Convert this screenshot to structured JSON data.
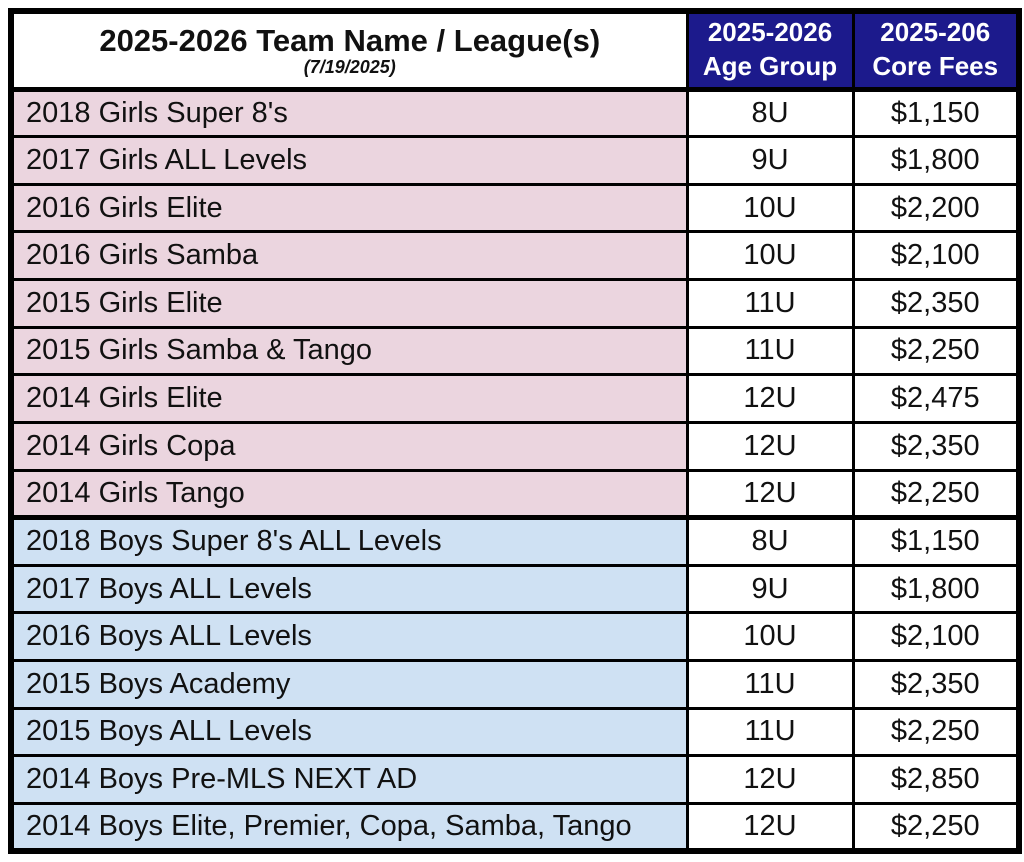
{
  "table": {
    "header": {
      "title": "2025-2026 Team Name / League(s)",
      "date": "(7/19/2025)",
      "age_group": {
        "line1": "2025-2026",
        "line2": "Age Group"
      },
      "core_fees": {
        "line1": "2025-206",
        "line2": "Core Fees"
      }
    },
    "rows": [
      {
        "name": "2018 Girls Super 8's",
        "age": "8U",
        "fee": "$1,150",
        "section": "girls"
      },
      {
        "name": "2017 Girls ALL Levels",
        "age": "9U",
        "fee": "$1,800",
        "section": "girls"
      },
      {
        "name": "2016 Girls Elite",
        "age": "10U",
        "fee": "$2,200",
        "section": "girls"
      },
      {
        "name": "2016 Girls Samba",
        "age": "10U",
        "fee": "$2,100",
        "section": "girls"
      },
      {
        "name": "2015 Girls Elite",
        "age": "11U",
        "fee": "$2,350",
        "section": "girls"
      },
      {
        "name": "2015 Girls Samba & Tango",
        "age": "11U",
        "fee": "$2,250",
        "section": "girls"
      },
      {
        "name": "2014 Girls Elite",
        "age": "12U",
        "fee": "$2,475",
        "section": "girls"
      },
      {
        "name": "2014 Girls Copa",
        "age": "12U",
        "fee": "$2,350",
        "section": "girls"
      },
      {
        "name": "2014 Girls Tango",
        "age": "12U",
        "fee": "$2,250",
        "section": "girls"
      },
      {
        "name": "2018 Boys Super 8's ALL Levels",
        "age": "8U",
        "fee": "$1,150",
        "section": "boys"
      },
      {
        "name": "2017 Boys ALL Levels",
        "age": "9U",
        "fee": "$1,800",
        "section": "boys"
      },
      {
        "name": "2016 Boys ALL Levels",
        "age": "10U",
        "fee": "$2,100",
        "section": "boys"
      },
      {
        "name": "2015 Boys Academy",
        "age": "11U",
        "fee": "$2,350",
        "section": "boys"
      },
      {
        "name": "2015 Boys ALL Levels",
        "age": "11U",
        "fee": "$2,250",
        "section": "boys"
      },
      {
        "name": "2014 Boys Pre-MLS NEXT AD",
        "age": "12U",
        "fee": "$2,850",
        "section": "boys"
      },
      {
        "name": "2014 Boys Elite, Premier, Copa, Samba, Tango",
        "age": "12U",
        "fee": "$2,250",
        "section": "boys"
      }
    ]
  },
  "colors": {
    "header-navy": "#1c1a8c",
    "header-text": "#ffffff",
    "girls-pink": "#ebd5df",
    "boys-blue": "#cfe1f3",
    "border-black": "#000000"
  }
}
